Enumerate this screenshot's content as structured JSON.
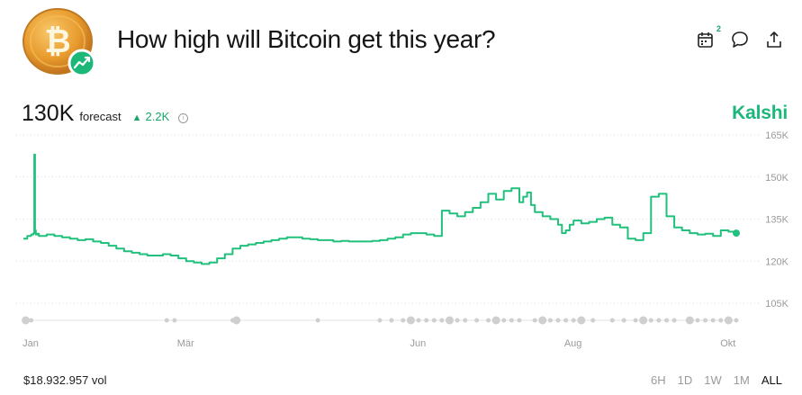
{
  "market": {
    "title": "How high will Bitcoin get this year?",
    "brand": "Kalshi",
    "logo_icon": "bitcoin-coin-icon",
    "badge_icon": "trending-up-icon"
  },
  "actions": [
    {
      "name": "calendar-icon",
      "badge": "2"
    },
    {
      "name": "comment-icon"
    },
    {
      "name": "share-icon"
    }
  ],
  "forecast": {
    "value": "130K",
    "label": "forecast",
    "change": "2.2K",
    "change_direction": "up",
    "info_icon": "info-icon"
  },
  "footer": {
    "volume": "$18.932.957 vol",
    "ranges": [
      "6H",
      "1D",
      "1W",
      "1M",
      "ALL"
    ],
    "active_range": "ALL"
  },
  "colors": {
    "accent": "#1cb87a",
    "line": "#22c07d"
  },
  "chart_data": {
    "type": "line",
    "y_tick_labels": [
      "165K",
      "150K",
      "135K",
      "120K",
      "105K"
    ],
    "y_ticks": [
      165000,
      150000,
      135000,
      120000,
      105000
    ],
    "ylim": [
      105000,
      165000
    ],
    "x_tick_labels": [
      "Jan",
      "Mär",
      "Jun",
      "Aug",
      "Okt"
    ],
    "x_ticks": [
      0,
      2,
      5,
      7,
      9
    ],
    "xlim": [
      0,
      9.2
    ],
    "grid": true,
    "series": [
      {
        "x": [
          0,
          0.05,
          0.1,
          0.13,
          0.14,
          0.15,
          0.16,
          0.18,
          0.2,
          0.3,
          0.4,
          0.5,
          0.6,
          0.7,
          0.8,
          0.9,
          1.0,
          1.1,
          1.2,
          1.3,
          1.4,
          1.5,
          1.6,
          1.7,
          1.8,
          1.9,
          2.0,
          2.1,
          2.2,
          2.3,
          2.4,
          2.5,
          2.6,
          2.7,
          2.8,
          2.9,
          3.0,
          3.1,
          3.2,
          3.3,
          3.4,
          3.5,
          3.6,
          3.7,
          3.8,
          3.9,
          4.0,
          4.1,
          4.2,
          4.3,
          4.4,
          4.5,
          4.6,
          4.7,
          4.8,
          4.9,
          5.0,
          5.1,
          5.2,
          5.3,
          5.4,
          5.5,
          5.6,
          5.7,
          5.8,
          5.9,
          6.0,
          6.1,
          6.2,
          6.3,
          6.4,
          6.45,
          6.5,
          6.55,
          6.6,
          6.7,
          6.8,
          6.9,
          6.95,
          7.0,
          7.05,
          7.1,
          7.2,
          7.3,
          7.4,
          7.5,
          7.6,
          7.7,
          7.8,
          7.9,
          8.0,
          8.1,
          8.2,
          8.3,
          8.4,
          8.5,
          8.6,
          8.7,
          8.8,
          8.9,
          9.0,
          9.1,
          9.2
        ],
        "y": [
          128000,
          129000,
          129500,
          130000,
          158000,
          131000,
          129500,
          129800,
          129000,
          129500,
          129000,
          128500,
          128000,
          127500,
          127800,
          127000,
          126500,
          125500,
          124500,
          123500,
          123000,
          122500,
          122000,
          122000,
          122500,
          122000,
          121000,
          120000,
          119500,
          119000,
          119500,
          121000,
          122500,
          124500,
          125500,
          126000,
          126500,
          127000,
          127500,
          128000,
          128500,
          128500,
          128000,
          127800,
          127500,
          127500,
          127000,
          127200,
          127000,
          127000,
          127000,
          127200,
          127500,
          128000,
          128500,
          129500,
          130000,
          130000,
          129500,
          129000,
          138000,
          137000,
          136000,
          137500,
          139000,
          141000,
          144000,
          142000,
          145000,
          146000,
          141000,
          143000,
          144500,
          140000,
          137500,
          136000,
          135000,
          133000,
          130000,
          131000,
          133000,
          134500,
          133500,
          134000,
          135000,
          135500,
          133000,
          132000,
          128000,
          127500,
          130000,
          143000,
          144000,
          136000,
          132000,
          131000,
          130000,
          129500,
          129800,
          129000,
          131000,
          130500,
          130000
        ]
      }
    ],
    "event_markers": [
      0.03,
      0.1,
      1.85,
      1.95,
      2.7,
      2.75,
      3.8,
      4.6,
      4.75,
      4.9,
      5.0,
      5.1,
      5.2,
      5.3,
      5.4,
      5.5,
      5.6,
      5.7,
      5.85,
      6.0,
      6.1,
      6.2,
      6.3,
      6.4,
      6.6,
      6.7,
      6.8,
      6.9,
      7.0,
      7.1,
      7.2,
      7.35,
      7.6,
      7.75,
      7.9,
      8.0,
      8.1,
      8.2,
      8.3,
      8.4,
      8.6,
      8.7,
      8.8,
      8.9,
      9.0,
      9.1,
      9.2
    ]
  }
}
